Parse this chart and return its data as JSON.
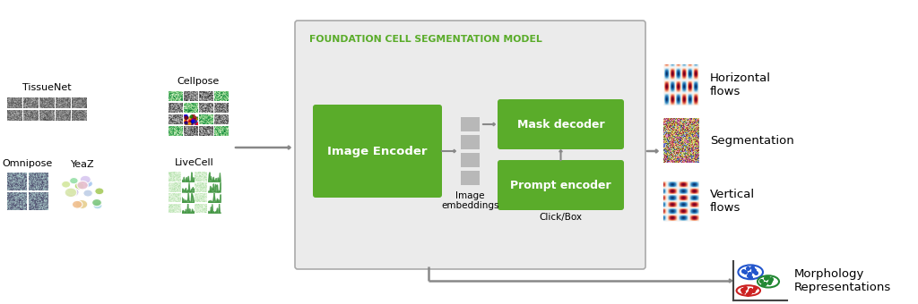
{
  "bg_color": "#ffffff",
  "green_color": "#5aac2a",
  "gray_box_color": "#ebebeb",
  "gray_box_edge": "#aaaaaa",
  "gray_block_color": "#b8b8b8",
  "arrow_color": "#888888",
  "title_color": "#5aac2a",
  "title_text": "FOUNDATION CELL SEGMENTATION MODEL",
  "image_encoder_text": "Image Encoder",
  "mask_decoder_text": "Mask decoder",
  "prompt_encoder_text": "Prompt encoder",
  "image_embeddings_text": "Image\nembeddings",
  "click_box_text": "Click/Box",
  "output_labels": [
    "Horizontal\nflows",
    "Segmentation",
    "Vertical\nflows",
    "Morphology\nRepresentations"
  ],
  "dataset_labels": [
    "TissueNet",
    "Cellpose",
    "Omnipose",
    "YeaZ",
    "LiveCell"
  ]
}
